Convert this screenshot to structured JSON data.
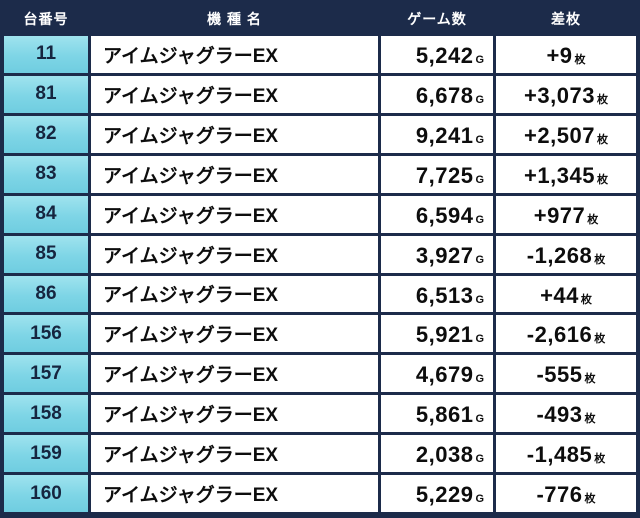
{
  "colors": {
    "frame_and_header_bg": "#1c2b4a",
    "unit_column_bg": "#7ed5e6",
    "row_bg": "#ffffff",
    "header_text": "#ffffff",
    "body_text": "#0d0d0d"
  },
  "chart_data": {
    "type": "table",
    "title": "",
    "columns": [
      "台番号",
      "機 種 名",
      "ゲーム数",
      "差枚"
    ],
    "suffix": {
      "games": "G",
      "diff": "枚"
    },
    "rows": [
      {
        "unit": "11",
        "model": "アイムジャグラーEX",
        "games": "5,242",
        "diff": "+9"
      },
      {
        "unit": "81",
        "model": "アイムジャグラーEX",
        "games": "6,678",
        "diff": "+3,073"
      },
      {
        "unit": "82",
        "model": "アイムジャグラーEX",
        "games": "9,241",
        "diff": "+2,507"
      },
      {
        "unit": "83",
        "model": "アイムジャグラーEX",
        "games": "7,725",
        "diff": "+1,345"
      },
      {
        "unit": "84",
        "model": "アイムジャグラーEX",
        "games": "6,594",
        "diff": "+977"
      },
      {
        "unit": "85",
        "model": "アイムジャグラーEX",
        "games": "3,927",
        "diff": "-1,268"
      },
      {
        "unit": "86",
        "model": "アイムジャグラーEX",
        "games": "6,513",
        "diff": "+44"
      },
      {
        "unit": "156",
        "model": "アイムジャグラーEX",
        "games": "5,921",
        "diff": "-2,616"
      },
      {
        "unit": "157",
        "model": "アイムジャグラーEX",
        "games": "4,679",
        "diff": "-555"
      },
      {
        "unit": "158",
        "model": "アイムジャグラーEX",
        "games": "5,861",
        "diff": "-493"
      },
      {
        "unit": "159",
        "model": "アイムジャグラーEX",
        "games": "2,038",
        "diff": "-1,485"
      },
      {
        "unit": "160",
        "model": "アイムジャグラーEX",
        "games": "5,229",
        "diff": "-776"
      }
    ]
  }
}
